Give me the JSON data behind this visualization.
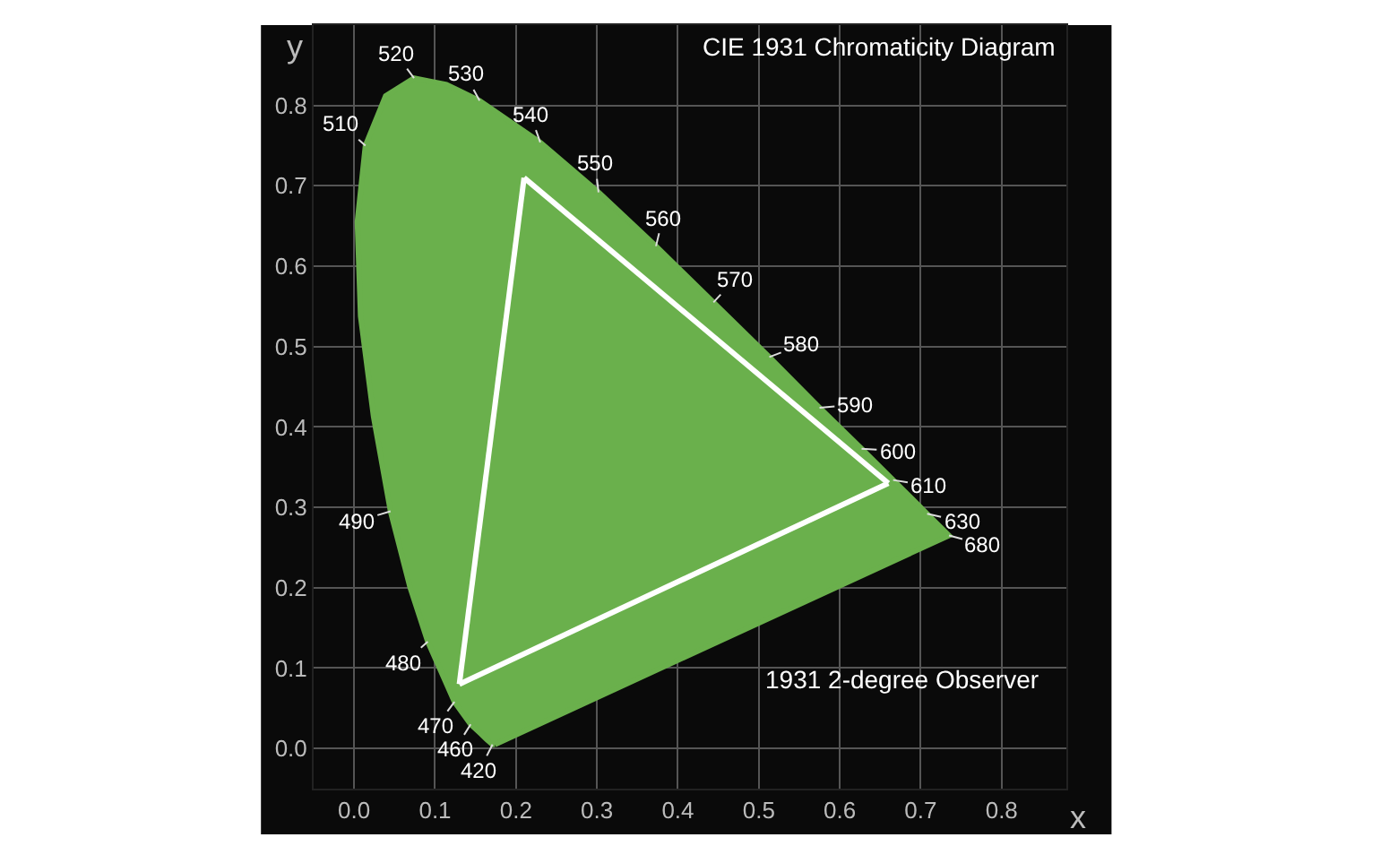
{
  "chart_data": {
    "type": "line",
    "title": "CIE 1931 Chromaticity Diagram",
    "xlabel": "x",
    "ylabel": "y",
    "xlim": [
      -0.05,
      0.88
    ],
    "ylim": [
      -0.05,
      0.9
    ],
    "xticks": [
      {
        "value": 0,
        "label": "0.0"
      },
      0.1,
      0.2,
      0.3,
      0.4,
      0.5,
      0.6,
      0.7,
      0.8
    ],
    "yticks": [
      {
        "value": 0,
        "label": "0.0"
      },
      0.1,
      0.2,
      0.3,
      0.4,
      0.5,
      0.6,
      0.7,
      0.8
    ],
    "grid": true,
    "marker": "none",
    "line_style": "solid",
    "series": [
      {
        "type": "area",
        "color": "#6ab04c",
        "x": [
          0.174,
          0.171,
          0.164,
          0.157,
          0.144,
          0.124,
          0.091,
          0.069,
          0.045,
          0.024,
          0.008,
          0.004,
          0.014,
          0.039,
          0.074,
          0.114,
          0.155,
          0.23,
          0.302,
          0.373,
          0.444,
          0.513,
          0.575,
          0.627,
          0.666,
          0.692,
          0.708,
          0.735,
          0.174
        ],
        "values": [
          0.005,
          0.005,
          0.011,
          0.018,
          0.03,
          0.058,
          0.133,
          0.201,
          0.295,
          0.413,
          0.538,
          0.655,
          0.75,
          0.812,
          0.834,
          0.826,
          0.806,
          0.754,
          0.692,
          0.625,
          0.555,
          0.487,
          0.424,
          0.373,
          0.334,
          0.308,
          0.292,
          0.265,
          0.005
        ]
      },
      {
        "color": "#ffffff",
        "x": [
          0.21,
          0.66
        ],
        "values": [
          0.71,
          0.33
        ]
      },
      {
        "color": "#ffffff",
        "x": [
          0.13,
          0.66
        ],
        "values": [
          0.08,
          0.33
        ]
      },
      {
        "color": "#ffffff",
        "x": [
          0.13,
          0.21
        ],
        "values": [
          0.08,
          0.71
        ]
      }
    ],
    "annotations": [
      {
        "text": "420",
        "x": 0.171,
        "y": 0.005
      },
      {
        "text": "460",
        "x": 0.144,
        "y": 0.03
      },
      {
        "text": "470",
        "x": 0.124,
        "y": 0.058
      },
      {
        "text": "480",
        "x": 0.091,
        "y": 0.133
      },
      {
        "text": "490",
        "x": 0.045,
        "y": 0.295
      },
      {
        "text": "510",
        "x": 0.014,
        "y": 0.75
      },
      {
        "text": "520",
        "x": 0.074,
        "y": 0.834
      },
      {
        "text": "530",
        "x": 0.155,
        "y": 0.806
      },
      {
        "text": "540",
        "x": 0.23,
        "y": 0.754
      },
      {
        "text": "550",
        "x": 0.302,
        "y": 0.692
      },
      {
        "text": "560",
        "x": 0.373,
        "y": 0.625
      },
      {
        "text": "570",
        "x": 0.444,
        "y": 0.555
      },
      {
        "text": "580",
        "x": 0.513,
        "y": 0.487
      },
      {
        "text": "590",
        "x": 0.575,
        "y": 0.424
      },
      {
        "text": "600",
        "x": 0.627,
        "y": 0.373
      },
      {
        "text": "610",
        "x": 0.666,
        "y": 0.334
      },
      {
        "text": "630",
        "x": 0.708,
        "y": 0.292
      },
      {
        "text": "680",
        "x": 0.735,
        "y": 0.265
      },
      "1931 2-degree Observer"
    ]
  }
}
